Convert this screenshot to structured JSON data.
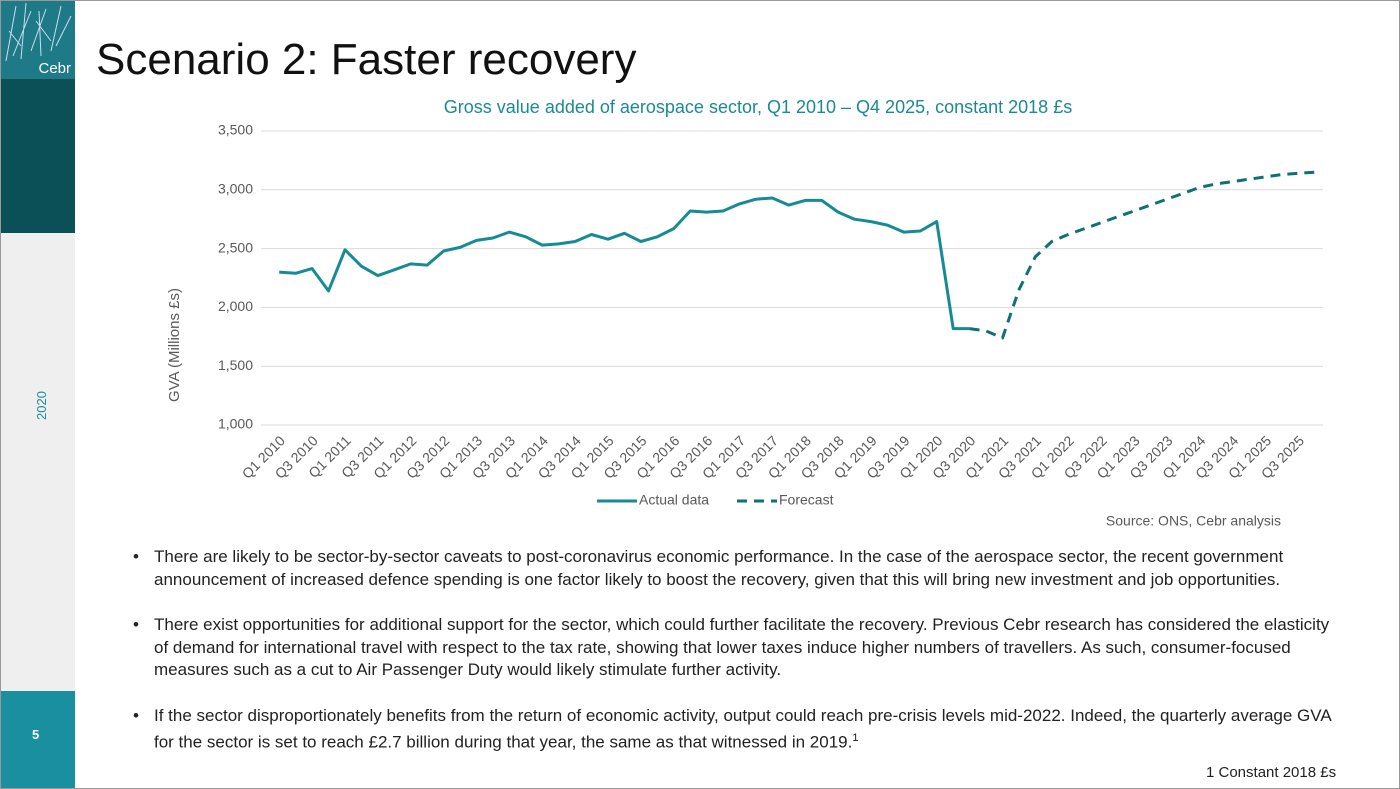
{
  "slide": {
    "logo": "Cebr",
    "year": "2020",
    "page": "5",
    "title": "Scenario 2: Faster recovery",
    "bullets": [
      "There are likely to be sector-by-sector caveats to post-coronavirus economic performance. In the case of the aerospace sector, the recent government announcement of increased defence spending is one factor likely to boost the recovery, given that this will bring new investment and job opportunities.",
      "There exist opportunities for additional support for the sector, which could further facilitate the recovery. Previous Cebr research has considered the elasticity of demand for international travel with respect to the tax rate, showing that lower taxes induce higher numbers of travellers. As such, consumer-focused measures such as a cut to Air Passenger Duty would likely stimulate further activity.",
      "If the sector disproportionately benefits from the return of economic activity, output could reach pre-crisis levels mid-2022. Indeed, the quarterly average GVA for the sector is set to reach £2.7 billion during that year, the same as that witnessed in 2019."
    ],
    "footnote_ref": "1",
    "footnote": "1 Constant 2018 £s"
  },
  "chart_data": {
    "type": "line",
    "title": "Gross value added of aerospace sector, Q1 2010 – Q4 2025, constant 2018 £s",
    "ylabel": "GVA (Millions £s)",
    "source": "Source: ONS, Cebr analysis",
    "categories": [
      "Q1 2010",
      null,
      "Q3 2010",
      null,
      "Q1 2011",
      null,
      "Q3 2011",
      null,
      "Q1 2012",
      null,
      "Q3 2012",
      null,
      "Q1 2013",
      null,
      "Q3 2013",
      null,
      "Q1 2014",
      null,
      "Q3 2014",
      null,
      "Q1 2015",
      null,
      "Q3 2015",
      null,
      "Q1 2016",
      null,
      "Q3 2016",
      null,
      "Q1 2017",
      null,
      "Q3 2017",
      null,
      "Q1 2018",
      null,
      "Q3 2018",
      null,
      "Q1 2019",
      null,
      "Q3 2019",
      null,
      "Q1 2020",
      null,
      "Q3 2020",
      null,
      "Q1 2021",
      null,
      "Q3 2021",
      null,
      "Q1 2022",
      null,
      "Q3 2022",
      null,
      "Q1 2023",
      null,
      "Q3 2023",
      null,
      "Q1 2024",
      null,
      "Q3 2024",
      null,
      "Q1 2025",
      null,
      "Q3 2025",
      null
    ],
    "series": [
      {
        "name": "Actual data",
        "color": "#168b96",
        "line_style": "solid",
        "values": [
          2300,
          2290,
          2330,
          2140,
          2490,
          2350,
          2270,
          2320,
          2370,
          2360,
          2480,
          2510,
          2570,
          2590,
          2640,
          2600,
          2530,
          2540,
          2560,
          2620,
          2580,
          2630,
          2560,
          2600,
          2670,
          2820,
          2810,
          2820,
          2880,
          2920,
          2930,
          2870,
          2910,
          2910,
          2810,
          2750,
          2730,
          2700,
          2640,
          2650,
          2730,
          1820,
          1820,
          null,
          null,
          null,
          null,
          null,
          null,
          null,
          null,
          null,
          null,
          null,
          null,
          null,
          null,
          null,
          null,
          null,
          null,
          null,
          null,
          null
        ]
      },
      {
        "name": "Forecast",
        "color": "#0f6f7a",
        "line_style": "dashed",
        "values": [
          null,
          null,
          null,
          null,
          null,
          null,
          null,
          null,
          null,
          null,
          null,
          null,
          null,
          null,
          null,
          null,
          null,
          null,
          null,
          null,
          null,
          null,
          null,
          null,
          null,
          null,
          null,
          null,
          null,
          null,
          null,
          null,
          null,
          null,
          null,
          null,
          null,
          null,
          null,
          null,
          null,
          null,
          1820,
          1800,
          1740,
          2150,
          2430,
          2560,
          2620,
          2670,
          2720,
          2770,
          2820,
          2870,
          2920,
          2970,
          3020,
          3050,
          3070,
          3090,
          3110,
          3130,
          3140,
          3150
        ]
      }
    ],
    "ylim": [
      1000,
      3500
    ],
    "yticks": [
      {
        "value": 1000,
        "label": "1,000"
      },
      {
        "value": 1500,
        "label": "1,500"
      },
      {
        "value": 2000,
        "label": "2,000"
      },
      {
        "value": 2500,
        "label": "2,500"
      },
      {
        "value": 3000,
        "label": "3,000"
      },
      {
        "value": 3500,
        "label": "3,500"
      }
    ],
    "grid": true,
    "legend": "bottom"
  }
}
